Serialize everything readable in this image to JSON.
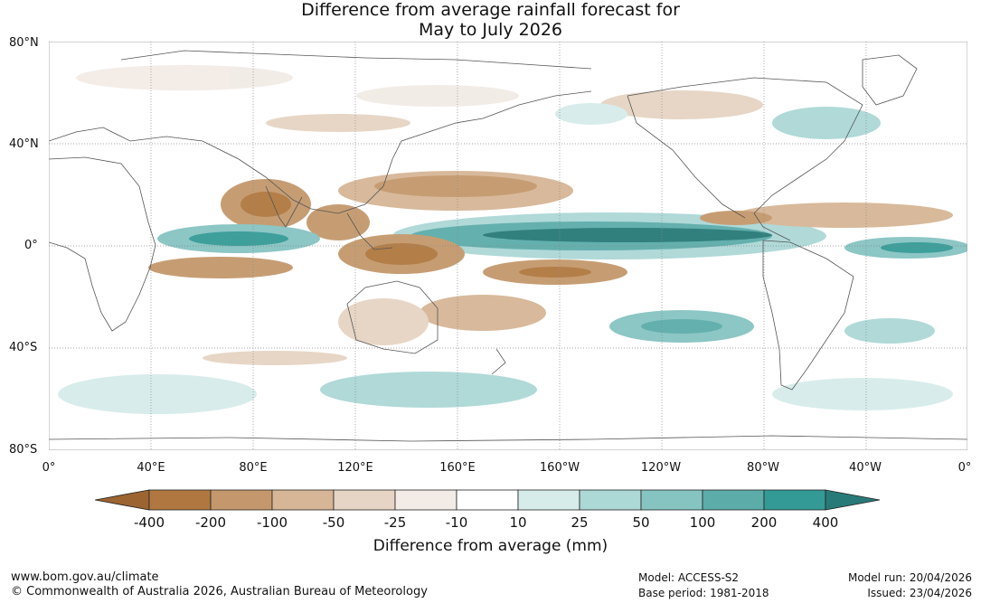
{
  "title_line1": "Difference from average rainfall forecast for",
  "title_line2": "May to July 2026",
  "lat_labels": [
    "80°N",
    "40°N",
    "0°",
    "40°S",
    "80°S"
  ],
  "lon_labels": [
    "0°",
    "40°E",
    "80°E",
    "120°E",
    "160°E",
    "160°W",
    "120°W",
    "80°W",
    "40°W",
    "0°"
  ],
  "legend": {
    "ticks": [
      "-400",
      "-200",
      "-100",
      "-50",
      "-25",
      "-10",
      "10",
      "25",
      "50",
      "100",
      "200",
      "400"
    ],
    "colors": [
      "#9c6430",
      "#b07840",
      "#c4986c",
      "#d6b696",
      "#e6d4c4",
      "#f2ebe6",
      "#ffffff",
      "#d6ecea",
      "#acd8d6",
      "#86c4c2",
      "#5cacaa",
      "#349a96",
      "#287a78"
    ],
    "unit_label": "Difference from average (mm)"
  },
  "footer": {
    "website": "www.bom.gov.au/climate",
    "copyright": "© Commonwealth of Australia 2026, Australian Bureau of Meteorology",
    "model": "Model: ACCESS-S2",
    "base_period": "Base period: 1981-2018",
    "model_run": "Model run: 20/04/2026",
    "issued": "Issued: 23/04/2026"
  }
}
